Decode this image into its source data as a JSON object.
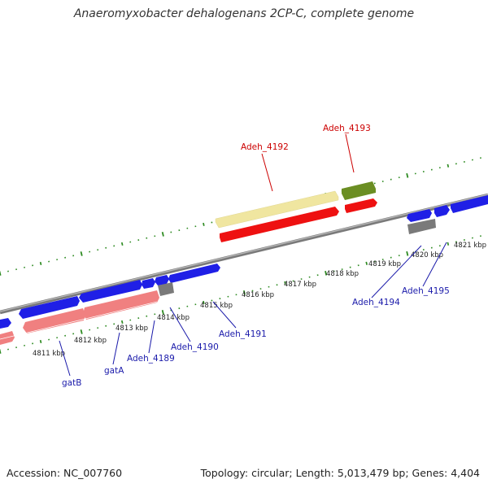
{
  "title": "Anaeromyxobacter dehalogenans 2CP-C, complete genome",
  "footer": {
    "accession": "Accession: NC_007760",
    "topology": "Topology: circular; Length: 5,013,479 bp; Genes: 4,404"
  },
  "colors": {
    "backbone": "#8a8a8a",
    "tick": "#2e8b22",
    "blue_gene": "#1f1fe6",
    "red_gene": "#ee1111",
    "pink_gene": "#f08080",
    "yellow_gene": "#f0e6a0",
    "olive_gene": "#6b8e23",
    "gray_gene": "#7a7a7a",
    "label_blue": "#1a1aaa",
    "label_red": "#cc0000"
  },
  "kbp_labels": [
    "4811 kbp",
    "4812 kbp",
    "4813 kbp",
    "4814 kbp",
    "4815 kbp",
    "4816 kbp",
    "4817 kbp",
    "4818 kbp",
    "4819 kbp",
    "4820 kbp",
    "4821 kbp"
  ],
  "gene_labels": [
    "Adeh_4193",
    "Adeh_4192",
    "gatB",
    "gatA",
    "Adeh_4189",
    "Adeh_4190",
    "Adeh_4191",
    "Adeh_4194",
    "Adeh_4195"
  ]
}
